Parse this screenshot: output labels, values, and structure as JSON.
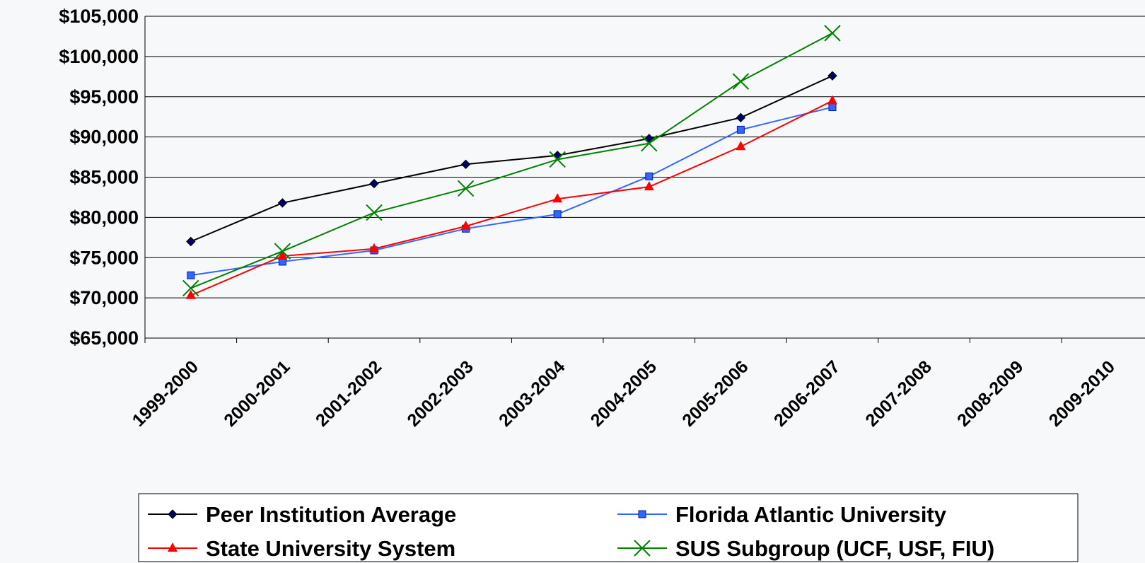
{
  "chart_data": {
    "type": "line",
    "categories": [
      "1999-2000",
      "2000-2001",
      "2001-2002",
      "2002-2003",
      "2003-2004",
      "2004-2005",
      "2005-2006",
      "2006-2007",
      "2007-2008",
      "2008-2009",
      "2009-2010"
    ],
    "series": [
      {
        "name": "Peer Institution Average",
        "color": "#000000",
        "marker": "diamond",
        "marker_color": "#000066",
        "values": [
          77000,
          81800,
          84200,
          86600,
          87700,
          89800,
          92400,
          97600,
          null,
          null,
          null
        ]
      },
      {
        "name": "Florida Atlantic University",
        "color": "#3366ff",
        "marker": "square",
        "marker_color": "#3366ff",
        "values": [
          72800,
          74500,
          75900,
          78600,
          80400,
          85100,
          90900,
          93700,
          null,
          null,
          null
        ]
      },
      {
        "name": "State University System",
        "color": "#ff0000",
        "marker": "triangle",
        "marker_color": "#ff0000",
        "values": [
          70300,
          75200,
          76100,
          78900,
          82300,
          83800,
          88800,
          94500,
          null,
          null,
          null
        ]
      },
      {
        "name": "SUS Subgroup (UCF, USF, FIU)",
        "color": "#008000",
        "marker": "x",
        "marker_color": "#008000",
        "values": [
          71200,
          75800,
          80600,
          83600,
          87200,
          89200,
          96900,
          102900,
          null,
          null,
          null
        ]
      }
    ],
    "ylim": [
      65000,
      105000
    ],
    "yticks": [
      {
        "value": 65000,
        "label": "$65,000"
      },
      {
        "value": 70000,
        "label": "$70,000"
      },
      {
        "value": 75000,
        "label": "$75,000"
      },
      {
        "value": 80000,
        "label": "$80,000"
      },
      {
        "value": 85000,
        "label": "$85,000"
      },
      {
        "value": 90000,
        "label": "$90,000"
      },
      {
        "value": 95000,
        "label": "$95,000"
      },
      {
        "value": 100000,
        "label": "$100,000"
      },
      {
        "value": 105000,
        "label": "$105,000"
      }
    ],
    "grid": true,
    "legend": "bottom"
  }
}
